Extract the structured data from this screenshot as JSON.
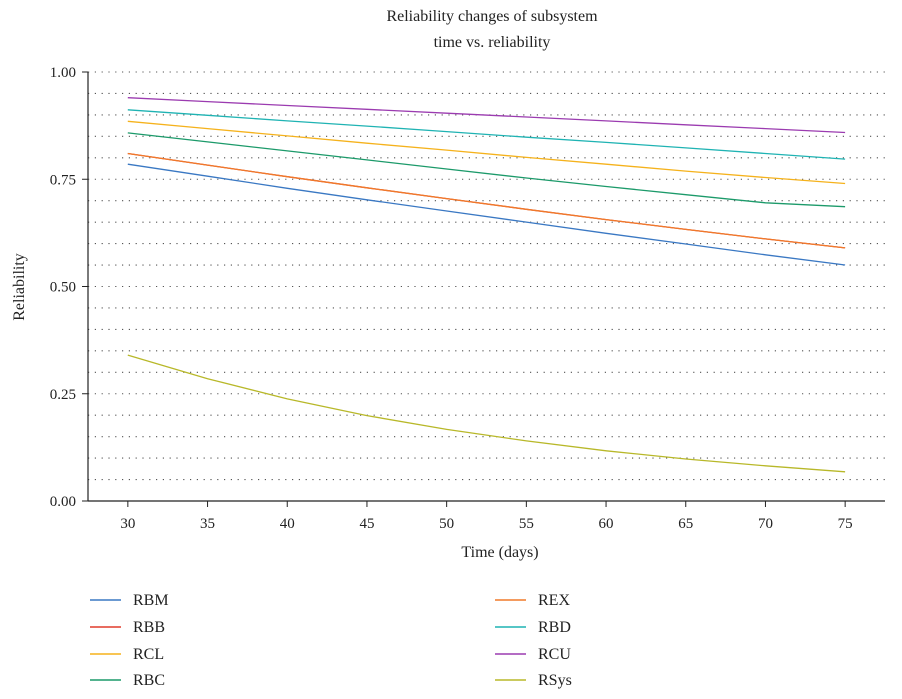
{
  "chart_data": {
    "type": "line",
    "title": "Reliability changes of subsystem",
    "subtitle": "time vs. reliability",
    "xlabel": "Time (days)",
    "ylabel": "Reliability",
    "xlim": [
      27.5,
      77.5
    ],
    "ylim": [
      0.0,
      1.0
    ],
    "x_ticks": [
      30,
      35,
      40,
      45,
      50,
      55,
      60,
      65,
      70,
      75
    ],
    "x_tick_labels": [
      "30",
      "35",
      "40",
      "45",
      "50",
      "55",
      "60",
      "65",
      "70",
      "75"
    ],
    "y_ticks": [
      0.0,
      0.25,
      0.5,
      0.75,
      1.0
    ],
    "y_tick_labels": [
      "0.00",
      "0.25",
      "0.50",
      "0.75",
      "1.00"
    ],
    "grid": "dotted",
    "legend_position": "bottom, two columns",
    "x": [
      30,
      35,
      40,
      45,
      50,
      55,
      60,
      65,
      70,
      75
    ],
    "series": [
      {
        "name": "RBM",
        "color": "#3a78c3",
        "values": [
          0.785,
          0.757,
          0.729,
          0.702,
          0.676,
          0.65,
          0.624,
          0.599,
          0.574,
          0.55
        ]
      },
      {
        "name": "RBB",
        "color": "#e03c2c",
        "values": [
          0.81,
          0.783,
          0.756,
          0.73,
          0.705,
          0.68,
          0.656,
          0.633,
          0.611,
          0.59
        ]
      },
      {
        "name": "RCL",
        "color": "#f5b21c",
        "values": [
          0.885,
          0.868,
          0.851,
          0.834,
          0.818,
          0.801,
          0.785,
          0.769,
          0.754,
          0.74
        ]
      },
      {
        "name": "RBC",
        "color": "#1c9a6a",
        "values": [
          0.858,
          0.837,
          0.816,
          0.795,
          0.774,
          0.753,
          0.733,
          0.714,
          0.695,
          0.686
        ]
      },
      {
        "name": "REX",
        "color": "#f07a2a",
        "values": [
          0.81,
          0.783,
          0.756,
          0.73,
          0.705,
          0.68,
          0.656,
          0.633,
          0.611,
          0.59
        ]
      },
      {
        "name": "RBD",
        "color": "#1fb3b3",
        "values": [
          0.912,
          0.899,
          0.886,
          0.874,
          0.861,
          0.848,
          0.836,
          0.823,
          0.81,
          0.797
        ]
      },
      {
        "name": "RCU",
        "color": "#9b3bb0",
        "values": [
          0.94,
          0.931,
          0.922,
          0.913,
          0.904,
          0.895,
          0.886,
          0.877,
          0.868,
          0.859
        ]
      },
      {
        "name": "RSys",
        "color": "#b8b829",
        "values": [
          0.34,
          0.285,
          0.238,
          0.199,
          0.167,
          0.14,
          0.117,
          0.098,
          0.082,
          0.068
        ]
      }
    ],
    "legend_columns": [
      [
        "RBM",
        "RBB",
        "RCL",
        "RBC"
      ],
      [
        "REX",
        "RBD",
        "RCU",
        "RSys"
      ]
    ]
  }
}
